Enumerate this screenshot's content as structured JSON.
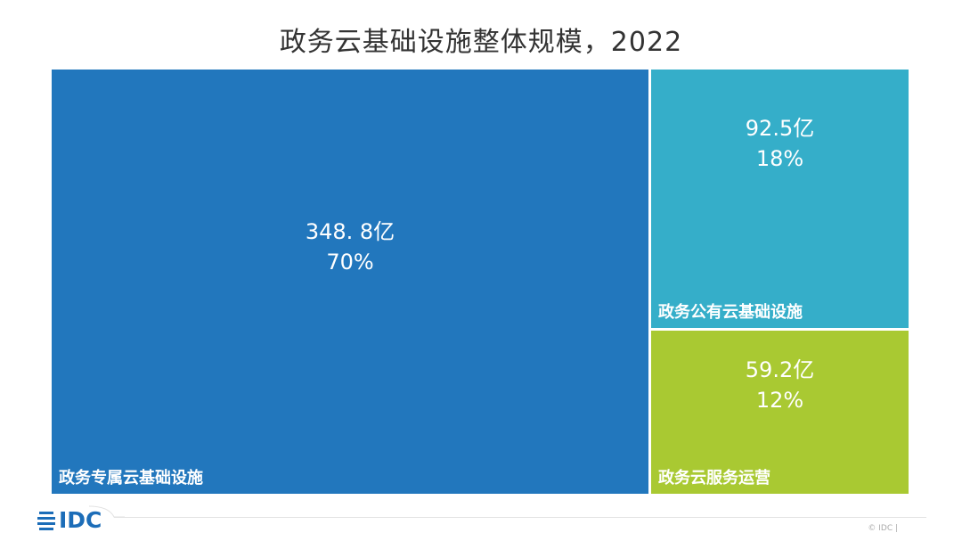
{
  "chart_data": {
    "type": "treemap",
    "title": "政务云基础设施整体规模，2022",
    "cells": [
      {
        "name": "政务专属云基础设施",
        "value_label": "348. 8亿",
        "value": 348.8,
        "percent_label": "70%",
        "percent": 70,
        "color": "#2277bd"
      },
      {
        "name": "政务公有云基础设施",
        "value_label": "92.5亿",
        "value": 92.5,
        "percent_label": "18%",
        "percent": 18,
        "color": "#35aec9"
      },
      {
        "name": "政务云服务运营",
        "value_label": "59.2亿",
        "value": 59.2,
        "percent_label": "12%",
        "percent": 12,
        "color": "#a9c932"
      }
    ]
  },
  "footer": {
    "logo_text": "IDC",
    "copyright": "© IDC |"
  }
}
